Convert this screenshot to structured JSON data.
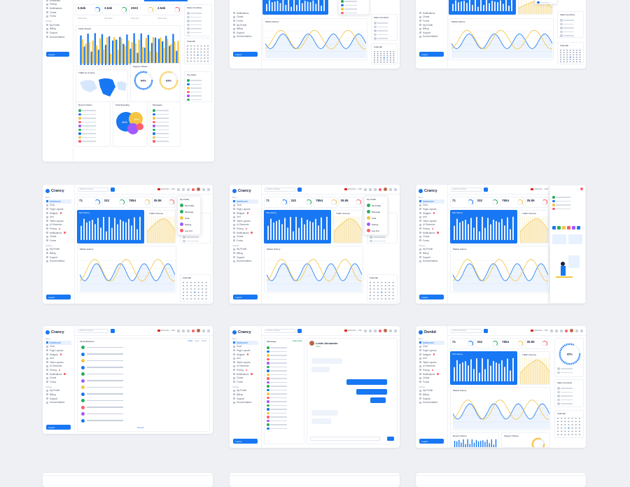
{
  "brand": {
    "name": "Crancy",
    "alt_name": "Crancy",
    "alt_name_2": "Donkit"
  },
  "search": {
    "placeholder": "Search anything"
  },
  "topbar": {
    "language": "ENGLISH",
    "currency": "USD"
  },
  "sidebar": {
    "menu_label": "Menu",
    "items": [
      "Dashboard",
      "Chat",
      "Page Layouts",
      "Widgets",
      "Unit",
      "Table Layouts",
      "UI Elements",
      "Pricing",
      "Notifications",
      "Charts",
      "Forms"
    ],
    "active_item": "Dashboard",
    "settings_label": "Settings",
    "settings_items": [
      "My Profile",
      "Billing",
      "Support",
      "Documentation"
    ],
    "logout": "Logout"
  },
  "stats": [
    {
      "value": "71",
      "label": "Total Products"
    },
    {
      "value": "332",
      "label": "Total Customers"
    },
    {
      "value": "7854",
      "label": "Total Orders"
    },
    {
      "value": "35.5k",
      "label": "Total Income"
    }
  ],
  "top_stats": [
    {
      "value": "5.54k",
      "label": "Total Orders"
    },
    {
      "value": "3.54k",
      "label": "Total Sales"
    },
    {
      "value": "2023",
      "label": "Total Users"
    },
    {
      "value": "2.54k",
      "label": "Total Income"
    }
  ],
  "panels": {
    "sell_history": "Sell History",
    "traffic_sources": "Traffic Sources",
    "market_history": "Market History",
    "sales_countries": "Sales Countries",
    "calendar": "Calendar",
    "traffic_by_country": "Traffic by Country",
    "support_tickets": "Support Tickets",
    "recent_orders": "Recent Orders",
    "visitor_report": "Visitor Report",
    "messages": "Messages",
    "all_notifications": "All Notifications",
    "top_sellers": "Top Seller",
    "total_spending": "Total Spending"
  },
  "gauges": {
    "left": "84%",
    "right": "83%",
    "profile": "85%"
  },
  "pie": {
    "a": "45%",
    "b": "25%",
    "c": "20%",
    "d": "10%"
  },
  "profile_menu": {
    "title": "My Profile",
    "items": [
      "My Profile",
      "Message",
      "Chat",
      "Setting",
      "Log Out"
    ]
  },
  "chat": {
    "name": "Leslie Alexander",
    "status": "Online",
    "online_label": "Online Chat"
  },
  "notifications_btn": {
    "view_all": "View all",
    "tabs": [
      "Today",
      "Week",
      "Month"
    ]
  },
  "watermark": ".com",
  "colors": {
    "primary": "#1877f2",
    "yellow": "#f4c542",
    "red": "#ff5d6c",
    "green": "#27ae60",
    "purple": "#a259ff"
  }
}
